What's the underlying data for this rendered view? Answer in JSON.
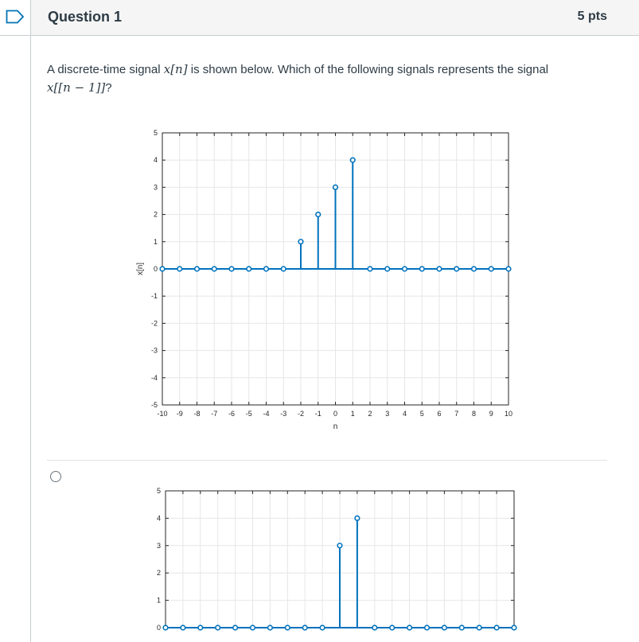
{
  "question": {
    "title": "Question 1",
    "points": "5 pts",
    "text_prefix": "A discrete-time signal ",
    "signal": "x[n]",
    "text_middle": " is shown below. Which of the following signals represents the signal",
    "signal_shifted": "x[[n − 1]]",
    "text_suffix": "?"
  },
  "colors": {
    "stem": "#0072BD",
    "grid": "#e6e6e6",
    "axis": "#262626"
  },
  "chart_data": [
    {
      "type": "scatter",
      "style": "stem",
      "xlabel": "n",
      "ylabel": "x[n]",
      "xlim": [
        -10,
        10
      ],
      "ylim": [
        -5,
        5
      ],
      "xticks": [
        -10,
        -9,
        -8,
        -7,
        -6,
        -5,
        -4,
        -3,
        -2,
        -1,
        0,
        1,
        2,
        3,
        4,
        5,
        6,
        7,
        8,
        9,
        10
      ],
      "yticks": [
        -5,
        -4,
        -3,
        -2,
        -1,
        0,
        1,
        2,
        3,
        4,
        5
      ],
      "grid": true,
      "x": [
        -10,
        -9,
        -8,
        -7,
        -6,
        -5,
        -4,
        -3,
        -2,
        -1,
        0,
        1,
        2,
        3,
        4,
        5,
        6,
        7,
        8,
        9,
        10
      ],
      "y": [
        0,
        0,
        0,
        0,
        0,
        0,
        0,
        0,
        1,
        2,
        3,
        4,
        0,
        0,
        0,
        0,
        0,
        0,
        0,
        0,
        0
      ]
    },
    {
      "type": "scatter",
      "style": "stem",
      "xlim": [
        -10,
        10
      ],
      "ylim": [
        0,
        5
      ],
      "yticks": [
        0,
        1,
        2,
        3,
        4,
        5
      ],
      "grid": true,
      "x": [
        -10,
        -9,
        -8,
        -7,
        -6,
        -5,
        -4,
        -3,
        -2,
        -1,
        0,
        1,
        2,
        3,
        4,
        5,
        6,
        7,
        8,
        9,
        10
      ],
      "y": [
        0,
        0,
        0,
        0,
        0,
        0,
        0,
        0,
        0,
        0,
        3,
        4,
        0,
        0,
        0,
        0,
        0,
        0,
        0,
        0,
        0
      ]
    }
  ]
}
